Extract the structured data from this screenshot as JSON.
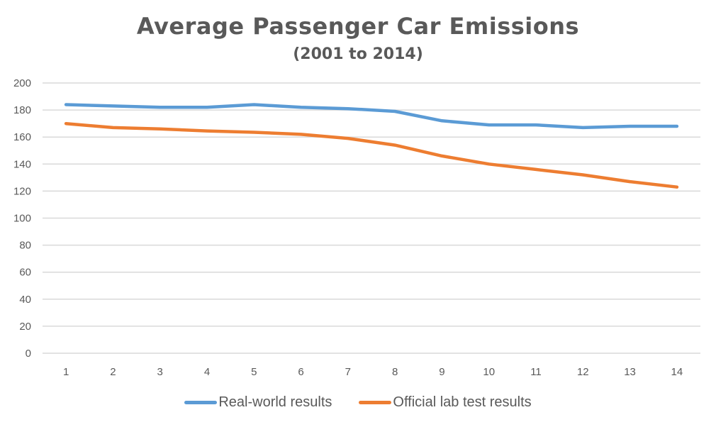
{
  "chart_data": {
    "type": "line",
    "title": "Average Passenger Car Emissions",
    "subtitle": "(2001 to 2014)",
    "xlabel": "",
    "ylabel": "",
    "x": [
      "1",
      "2",
      "3",
      "4",
      "5",
      "6",
      "7",
      "8",
      "9",
      "10",
      "11",
      "12",
      "13",
      "14"
    ],
    "ylim": [
      0,
      200
    ],
    "yticks": [
      0,
      20,
      40,
      60,
      80,
      100,
      120,
      140,
      160,
      180,
      200
    ],
    "grid": true,
    "legend_position": "bottom",
    "series": [
      {
        "name": "Real-world results",
        "color": "#5b9bd5",
        "values": [
          184,
          183,
          182,
          182,
          184,
          182,
          181,
          179,
          172,
          169,
          169,
          167,
          168,
          168
        ]
      },
      {
        "name": "Official lab test results",
        "color": "#ed7d31",
        "values": [
          170,
          167,
          166,
          164.5,
          163.5,
          162,
          159,
          154,
          146,
          140,
          136,
          132,
          127,
          123
        ]
      }
    ]
  }
}
